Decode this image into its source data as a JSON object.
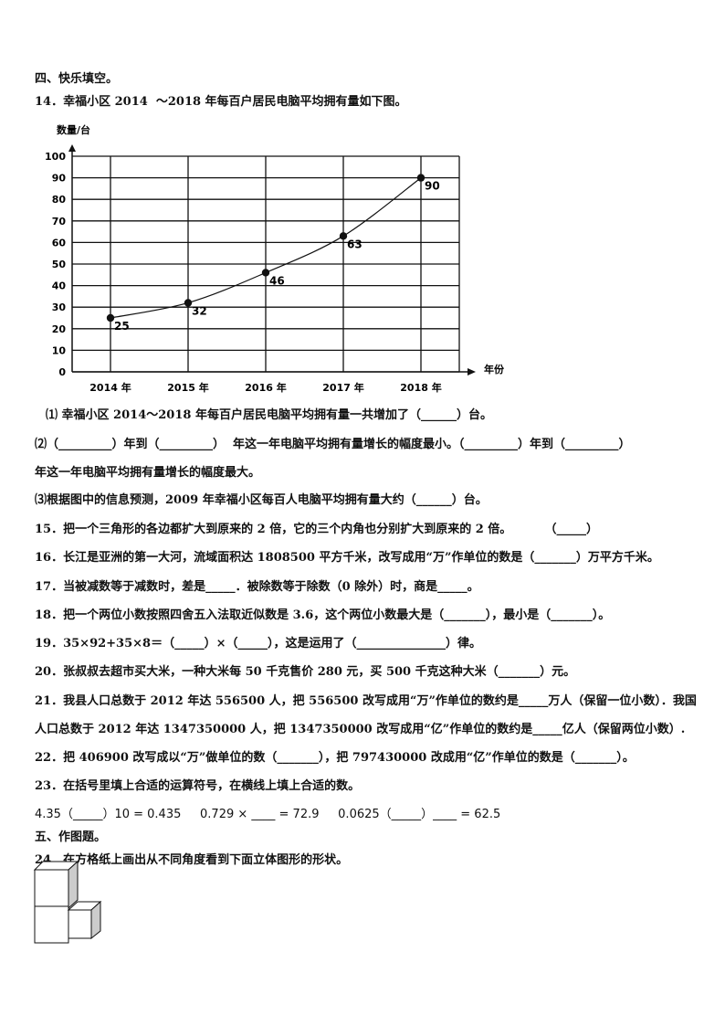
{
  "section4_title": "四、快乐填空。",
  "q14": {
    "stem": "14．幸福小区 2014  ～2018 年每百户居民电脑平均拥有量如下图。",
    "sub1": "⑴ 幸福小区 2014～2018 年每百户居民电脑平均拥有量一共增加了（______）台。",
    "sub2a": "⑵（_________）年到（_________）  年这一年电脑平均拥有量增长的幅度最小。（_________）年到（_________）",
    "sub2b": "年这一年电脑平均拥有量增长的幅度最大。",
    "sub3": "⑶根据图中的信息预测，2009 年幸福小区每百人电脑平均拥有量大约（______）台。"
  },
  "chart_data": {
    "type": "line",
    "ylabel": "数量/台",
    "xlabel": "年份",
    "categories": [
      "2014 年",
      "2015 年",
      "2016 年",
      "2017 年",
      "2018 年"
    ],
    "values": [
      25,
      32,
      46,
      63,
      90
    ],
    "data_labels": [
      "25",
      "32",
      "46",
      "63",
      "90"
    ],
    "ylim": [
      0,
      100
    ],
    "yticks": [
      "0",
      "10",
      "20",
      "30",
      "40",
      "50",
      "60",
      "70",
      "80",
      "90",
      "100"
    ],
    "grid": true
  },
  "questions": [
    "15．把一个三角形的各边都扩大到原来的 2 倍，它的三个内角也分别扩大到原来的 2 倍。        （_____）",
    "16．长江是亚洲的第一大河，流域面积达 1808500 平方千米，改写成用“万”作单位的数是（_______）万平方千米。",
    "17．当被减数等于减数时，差是_____．被除数等于除数（0 除外）时，商是_____。",
    "18．把一个两位小数按照四舍五入法取近似数是 3.6，这个两位小数最大是（_______），最小是（_______）。",
    "19．35×92+35×8＝（_____）×（_____），这是运用了（_______________）律。",
    "20．张叔叔去超市买大米，一种大米每 50 千克售价 280 元，买 500 千克这种大米（_______）元。",
    "21．我县人口总数于 2012 年达 556500 人，把 556500 改写成用“万”作单位的数约是_____万人（保留一位小数）．我国",
    "人口总数于 2012 年达 1347350000 人，把 1347350000 改写成用“亿”作单位的数约是_____亿人（保留两位小数）.",
    "22．把 406900 改写成以“万”做单位的数（_______），把 797430000 改成用“亿”作单位的数是（_______）。",
    "23．在括号里填上合适的运算符号，在横线上填上合适的数。"
  ],
  "q23_calc": "4.35（_____）10 = 0.435     0.729 × ____ = 72.9     0.0625（_____）____ = 62.5",
  "section5_title": "五、作图题。",
  "q24": "24．在方格纸上画出从不同角度看到下面立体图形的形状。"
}
